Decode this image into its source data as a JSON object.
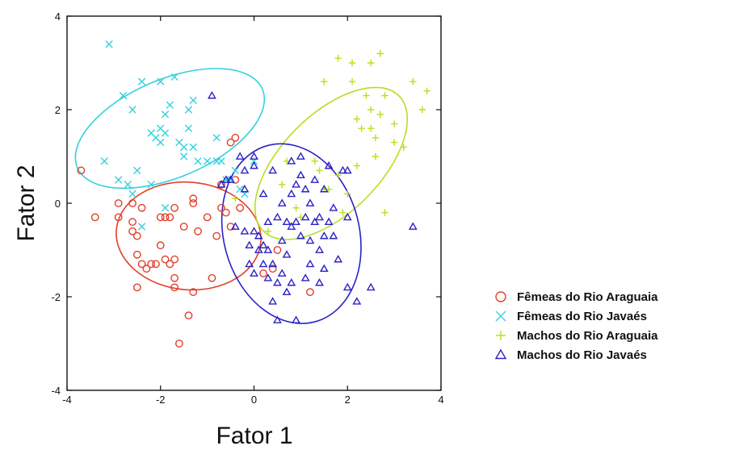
{
  "chart_data": {
    "type": "scatter",
    "title": "",
    "xlabel": "Fator 1",
    "ylabel": "Fator 2",
    "xlim": [
      -4,
      4
    ],
    "ylim": [
      -4,
      4
    ],
    "xticks": [
      -4,
      -2,
      0,
      2,
      4
    ],
    "yticks": [
      -4,
      -2,
      0,
      2,
      4
    ],
    "grid": false,
    "legend_position": "right",
    "series": [
      {
        "name": "Fêmeas do Rio Araguaia",
        "marker": "circle",
        "color": "#e0412b",
        "ellipse": {
          "cx": -1.4,
          "cy": -0.7,
          "rx": 1.55,
          "ry": 1.15,
          "angle": 5
        },
        "points": [
          [
            -3.7,
            0.7
          ],
          [
            -3.4,
            -0.3
          ],
          [
            -2.9,
            0.0
          ],
          [
            -2.9,
            -0.3
          ],
          [
            -2.6,
            0.0
          ],
          [
            -2.6,
            -0.6
          ],
          [
            -2.5,
            -0.7
          ],
          [
            -2.4,
            -0.1
          ],
          [
            -2.5,
            -1.1
          ],
          [
            -2.4,
            -1.3
          ],
          [
            -2.3,
            -1.4
          ],
          [
            -2.2,
            -1.3
          ],
          [
            -2.1,
            -1.3
          ],
          [
            -2.0,
            -0.9
          ],
          [
            -1.9,
            -1.2
          ],
          [
            -1.8,
            -1.3
          ],
          [
            -1.7,
            -1.2
          ],
          [
            -1.7,
            -1.6
          ],
          [
            -1.7,
            -1.8
          ],
          [
            -2.5,
            -1.8
          ],
          [
            -2.6,
            -0.4
          ],
          [
            -2.0,
            -0.3
          ],
          [
            -1.9,
            -0.3
          ],
          [
            -1.8,
            -0.3
          ],
          [
            -1.7,
            -0.1
          ],
          [
            -1.5,
            -0.5
          ],
          [
            -1.4,
            -2.4
          ],
          [
            -1.6,
            -3.0
          ],
          [
            -1.3,
            -1.9
          ],
          [
            -1.3,
            0.0
          ],
          [
            -1.3,
            0.1
          ],
          [
            -1.2,
            -0.6
          ],
          [
            -1.0,
            -0.3
          ],
          [
            -0.9,
            -1.6
          ],
          [
            -0.8,
            -0.7
          ],
          [
            -0.7,
            0.4
          ],
          [
            -0.7,
            -0.1
          ],
          [
            -0.6,
            -0.2
          ],
          [
            -0.5,
            -0.5
          ],
          [
            -0.4,
            1.4
          ],
          [
            -0.3,
            -0.1
          ],
          [
            -0.4,
            0.5
          ],
          [
            0.2,
            -1.5
          ],
          [
            0.4,
            -1.4
          ],
          [
            0.5,
            -1.0
          ],
          [
            1.2,
            -1.9
          ],
          [
            -0.5,
            1.3
          ]
        ]
      },
      {
        "name": "Fêmeas do Rio Javaés",
        "marker": "x",
        "color": "#36d1e0",
        "ellipse": {
          "cx": -1.8,
          "cy": 1.6,
          "rx": 2.15,
          "ry": 1.05,
          "angle": -23
        },
        "points": [
          [
            -3.1,
            3.4
          ],
          [
            -3.2,
            0.9
          ],
          [
            -2.8,
            2.3
          ],
          [
            -2.6,
            2.0
          ],
          [
            -2.4,
            2.6
          ],
          [
            -2.2,
            1.5
          ],
          [
            -2.1,
            1.4
          ],
          [
            -2.0,
            1.6
          ],
          [
            -1.9,
            1.5
          ],
          [
            -1.9,
            1.9
          ],
          [
            -1.8,
            2.1
          ],
          [
            -1.7,
            2.7
          ],
          [
            -1.6,
            1.3
          ],
          [
            -1.5,
            1.2
          ],
          [
            -1.4,
            1.6
          ],
          [
            -1.4,
            2.0
          ],
          [
            -1.3,
            2.2
          ],
          [
            -1.2,
            0.9
          ],
          [
            -1.0,
            0.9
          ],
          [
            -0.8,
            1.4
          ],
          [
            -0.8,
            0.9
          ],
          [
            -0.7,
            0.9
          ],
          [
            -0.6,
            0.5
          ],
          [
            -0.5,
            0.5
          ],
          [
            -0.4,
            0.7
          ],
          [
            -0.3,
            0.3
          ],
          [
            -0.2,
            0.2
          ],
          [
            -2.7,
            0.4
          ],
          [
            -2.6,
            0.2
          ],
          [
            -2.5,
            0.7
          ],
          [
            -2.4,
            -0.5
          ],
          [
            -2.2,
            0.4
          ],
          [
            -2.0,
            2.6
          ],
          [
            -1.9,
            -0.1
          ],
          [
            -1.5,
            1.0
          ],
          [
            -1.3,
            1.2
          ],
          [
            0.0,
            0.9
          ],
          [
            -2.9,
            0.5
          ],
          [
            -2.0,
            1.3
          ]
        ]
      },
      {
        "name": "Machos do Rio Araguaia",
        "marker": "plus",
        "color": "#b5e01e",
        "ellipse": {
          "cx": 1.65,
          "cy": 0.85,
          "rx": 2.05,
          "ry": 1.05,
          "angle": -45
        },
        "points": [
          [
            1.3,
            0.9
          ],
          [
            1.4,
            0.7
          ],
          [
            1.5,
            0.3
          ],
          [
            1.6,
            0.3
          ],
          [
            1.8,
            0.6
          ],
          [
            1.9,
            -0.2
          ],
          [
            2.0,
            0.2
          ],
          [
            2.1,
            2.6
          ],
          [
            2.2,
            1.8
          ],
          [
            2.2,
            0.8
          ],
          [
            2.3,
            1.6
          ],
          [
            2.4,
            2.3
          ],
          [
            2.5,
            2.0
          ],
          [
            2.5,
            1.6
          ],
          [
            2.6,
            1.4
          ],
          [
            2.6,
            1.0
          ],
          [
            2.7,
            1.9
          ],
          [
            2.8,
            2.3
          ],
          [
            3.0,
            1.7
          ],
          [
            3.0,
            1.3
          ],
          [
            3.2,
            1.2
          ],
          [
            3.4,
            2.6
          ],
          [
            3.6,
            2.0
          ],
          [
            3.7,
            2.4
          ],
          [
            2.1,
            3.0
          ],
          [
            2.5,
            3.0
          ],
          [
            2.7,
            3.2
          ],
          [
            1.8,
            3.1
          ],
          [
            1.5,
            2.6
          ],
          [
            1.0,
            -0.3
          ],
          [
            0.6,
            0.4
          ],
          [
            0.3,
            -0.6
          ],
          [
            0.9,
            -0.1
          ],
          [
            2.8,
            -0.2
          ],
          [
            0.7,
            0.9
          ],
          [
            -0.4,
            0.1
          ]
        ]
      },
      {
        "name": "Machos do Rio Javaés",
        "marker": "triangle",
        "color": "#2a22c4",
        "ellipse": {
          "cx": 0.8,
          "cy": -0.65,
          "rx": 1.45,
          "ry": 1.95,
          "angle": -15
        },
        "points": [
          [
            -0.9,
            2.3
          ],
          [
            -0.7,
            0.4
          ],
          [
            -0.6,
            0.5
          ],
          [
            -0.5,
            0.5
          ],
          [
            -0.3,
            1.0
          ],
          [
            -0.2,
            0.7
          ],
          [
            0.0,
            1.0
          ],
          [
            0.0,
            0.8
          ],
          [
            0.0,
            -0.6
          ],
          [
            0.1,
            -0.7
          ],
          [
            0.1,
            -1.0
          ],
          [
            0.2,
            -0.9
          ],
          [
            0.2,
            -1.3
          ],
          [
            0.3,
            -0.4
          ],
          [
            0.3,
            -1.0
          ],
          [
            0.3,
            -1.6
          ],
          [
            0.4,
            -1.3
          ],
          [
            0.4,
            -2.1
          ],
          [
            0.5,
            -1.7
          ],
          [
            0.5,
            -2.5
          ],
          [
            0.6,
            -1.5
          ],
          [
            0.6,
            -0.8
          ],
          [
            0.6,
            0.0
          ],
          [
            0.7,
            -0.4
          ],
          [
            0.7,
            -1.1
          ],
          [
            0.8,
            -0.5
          ],
          [
            0.8,
            0.2
          ],
          [
            0.8,
            -1.7
          ],
          [
            0.9,
            -0.4
          ],
          [
            0.9,
            -2.5
          ],
          [
            1.0,
            -0.7
          ],
          [
            1.0,
            0.6
          ],
          [
            1.0,
            1.0
          ],
          [
            1.1,
            -0.3
          ],
          [
            1.1,
            -1.6
          ],
          [
            1.2,
            0.0
          ],
          [
            1.2,
            -0.8
          ],
          [
            1.3,
            -0.4
          ],
          [
            1.3,
            0.5
          ],
          [
            1.4,
            -1.0
          ],
          [
            1.4,
            -1.7
          ],
          [
            1.5,
            -0.7
          ],
          [
            1.5,
            0.3
          ],
          [
            1.6,
            -0.4
          ],
          [
            1.7,
            -0.1
          ],
          [
            1.8,
            -1.2
          ],
          [
            1.9,
            0.7
          ],
          [
            2.0,
            -0.3
          ],
          [
            2.0,
            -1.8
          ],
          [
            2.0,
            0.7
          ],
          [
            2.2,
            -2.1
          ],
          [
            2.5,
            -1.8
          ],
          [
            3.4,
            -0.5
          ],
          [
            -0.4,
            -0.5
          ],
          [
            -0.2,
            -0.6
          ],
          [
            -0.1,
            -0.9
          ],
          [
            -0.1,
            -1.3
          ],
          [
            0.0,
            -1.5
          ],
          [
            0.4,
            0.7
          ],
          [
            0.9,
            0.4
          ],
          [
            1.5,
            -1.4
          ],
          [
            1.2,
            -1.3
          ],
          [
            0.7,
            -1.9
          ],
          [
            1.7,
            -0.7
          ],
          [
            -0.2,
            0.3
          ],
          [
            0.5,
            -0.3
          ],
          [
            1.6,
            0.8
          ],
          [
            0.2,
            0.2
          ],
          [
            0.8,
            0.9
          ],
          [
            1.1,
            0.3
          ],
          [
            1.4,
            -0.3
          ]
        ]
      }
    ]
  }
}
